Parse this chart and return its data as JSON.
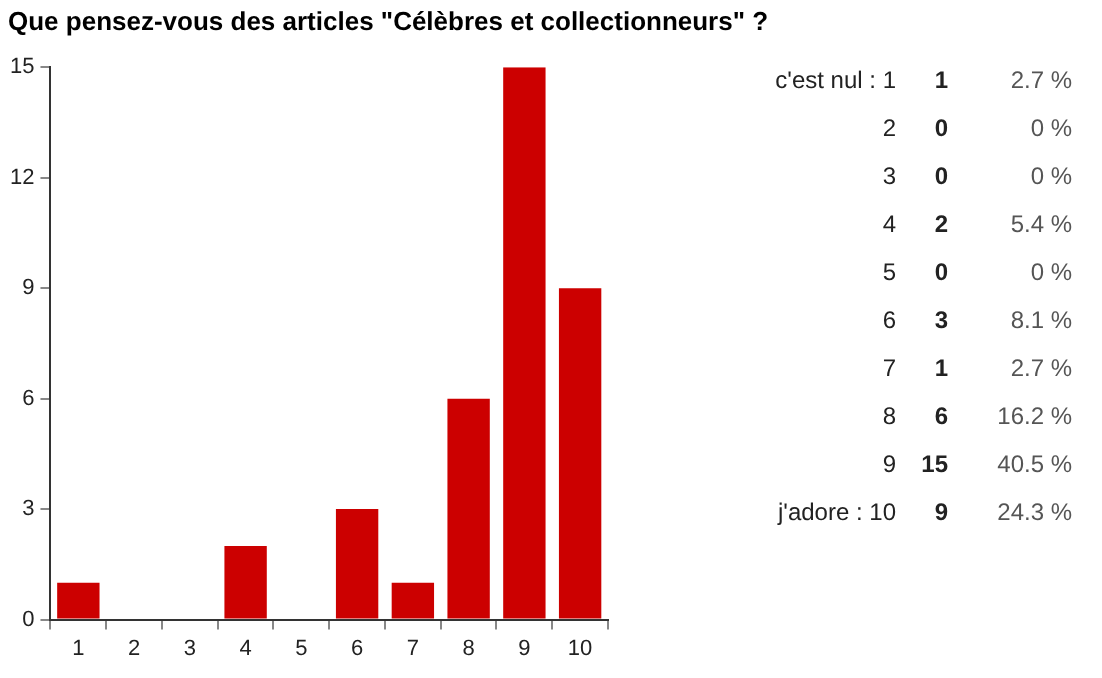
{
  "chart_data": {
    "type": "bar",
    "title": "Que pensez-vous des articles \"Célèbres et collectionneurs\" ?",
    "categories": [
      "1",
      "2",
      "3",
      "4",
      "5",
      "6",
      "7",
      "8",
      "9",
      "10"
    ],
    "values": [
      1,
      0,
      0,
      2,
      0,
      3,
      1,
      6,
      15,
      9
    ],
    "color": "#cc0000",
    "ylim": [
      0,
      15
    ],
    "yticks": [
      0,
      3,
      6,
      9,
      12,
      15
    ],
    "grid": false,
    "legend": false,
    "annotations": [
      "c'est nul : 1",
      "1",
      "2.7 %",
      "2",
      "0",
      "0 %",
      "3",
      "0",
      "0 %",
      "4",
      "2",
      "5.4 %",
      "5",
      "0",
      "0 %",
      "6",
      "3",
      "8.1 %",
      "7",
      "1",
      "2.7 %",
      "8",
      "6",
      "16.2 %",
      "9",
      "15",
      "40.5 %",
      "j'adore : 10",
      "9",
      "24.3 %"
    ]
  }
}
